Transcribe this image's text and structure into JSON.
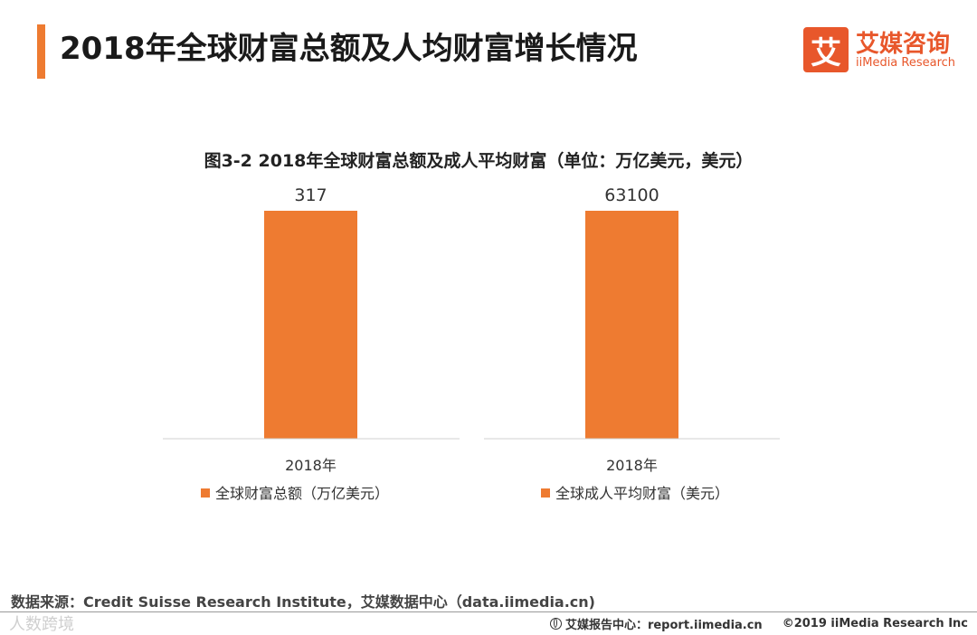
{
  "header": {
    "title": "2018年全球财富总额及人均财富增长情况",
    "accent_color": "#ee7b31"
  },
  "logo": {
    "mark": "艾",
    "name_cn": "艾媒咨询",
    "name_en": "iiMedia Research",
    "color": "#e8572b"
  },
  "chart_data": [
    {
      "type": "bar",
      "title": "图3-2 2018年全球财富总额及成人平均财富（单位：万亿美元，美元）",
      "categories": [
        "2018年"
      ],
      "series": [
        {
          "name": "全球财富总额（万亿美元）",
          "values": [
            317
          ]
        }
      ],
      "value_labels": [
        "317"
      ],
      "ylim": [
        0,
        317
      ],
      "color": "#ee7b31",
      "legend": "bottom"
    },
    {
      "type": "bar",
      "categories": [
        "2018年"
      ],
      "series": [
        {
          "name": "全球成人平均财富（美元）",
          "values": [
            63100
          ]
        }
      ],
      "value_labels": [
        "63100"
      ],
      "ylim": [
        0,
        63100
      ],
      "color": "#ee7b31",
      "legend": "bottom"
    }
  ],
  "footer": {
    "source": "数据来源：Credit Suisse Research Institute，艾媒数据中心（data.iimedia.cn)",
    "report_center": "艾媒报告中心：report.iimedia.cn",
    "copyright": "©2019  iiMedia Research  Inc",
    "watermark": "人数跨境"
  }
}
